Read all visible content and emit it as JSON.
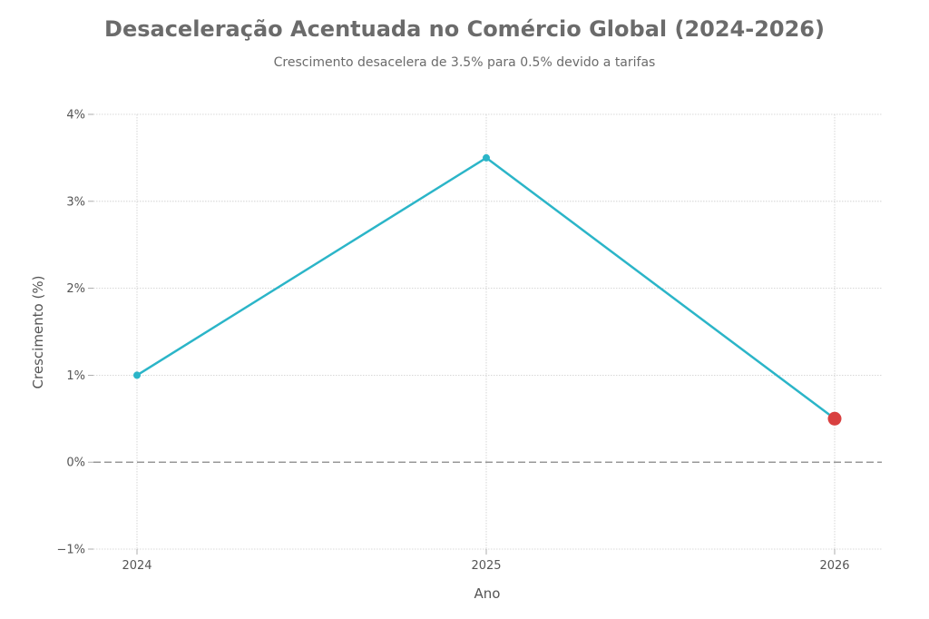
{
  "chart_data": {
    "type": "line",
    "title": "Desaceleração Acentuada no Comércio Global (2024-2026)",
    "subtitle": "Crescimento desacelera de 3.5% para 0.5% devido a tarifas",
    "xlabel": "Ano",
    "ylabel": "Crescimento (%)",
    "x": [
      "2024",
      "2025",
      "2026"
    ],
    "series": [
      {
        "values": [
          1.0,
          3.5,
          0.5
        ]
      }
    ],
    "ylim": [
      -1,
      4
    ],
    "y_ticks": [
      -1,
      0,
      1,
      2,
      3,
      4
    ],
    "y_tick_labels": [
      "−1%",
      "0%",
      "1%",
      "2%",
      "3%",
      "4%"
    ],
    "grid": true,
    "reference_line": {
      "y": 0,
      "style": "dashed"
    },
    "highlight_point": {
      "x": "2026",
      "value": 0.5
    },
    "colors": {
      "line": "#2bb5c8",
      "highlight": "#d94040",
      "grid": "#cccccc",
      "text": "#555555"
    }
  }
}
